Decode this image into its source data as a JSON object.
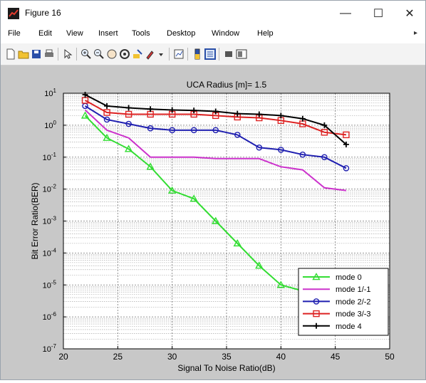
{
  "window": {
    "title": "Figure 16",
    "controls": {
      "minimize": "—",
      "maximize": "☐",
      "close": "✕"
    }
  },
  "menu": {
    "items": [
      "File",
      "Edit",
      "View",
      "Insert",
      "Tools",
      "Desktop",
      "Window",
      "Help"
    ],
    "overflow_arrow": "▸"
  },
  "toolbar": {
    "icons": [
      "new-figure-icon",
      "open-file-icon",
      "save-icon",
      "print-icon",
      "pointer-icon",
      "zoom-in-icon",
      "zoom-out-icon",
      "pan-icon",
      "rotate-3d-icon",
      "data-cursor-icon",
      "brush-icon",
      "link-plot-icon",
      "colorbar-icon",
      "legend-icon",
      "hide-plot-tools-icon",
      "show-plot-tools-icon"
    ]
  },
  "chart_data": {
    "type": "line",
    "title": "UCA Radius [m]= 1.5",
    "xlabel": "Signal To Noise Ratio(dB)",
    "ylabel": "Bit Error Ratio(BER)",
    "xlim": [
      20,
      50
    ],
    "ylim": [
      1e-07,
      10
    ],
    "yscale": "log",
    "x_ticks": [
      20,
      25,
      30,
      35,
      40,
      45,
      50
    ],
    "y_ticks": [
      {
        "value": 10,
        "base": "10",
        "exp": "1"
      },
      {
        "value": 1,
        "base": "10",
        "exp": "0"
      },
      {
        "value": 0.1,
        "base": "10",
        "exp": "-1"
      },
      {
        "value": 0.01,
        "base": "10",
        "exp": "-2"
      },
      {
        "value": 0.001,
        "base": "10",
        "exp": "-3"
      },
      {
        "value": 0.0001,
        "base": "10",
        "exp": "-4"
      },
      {
        "value": 1e-05,
        "base": "10",
        "exp": "-5"
      },
      {
        "value": 1e-06,
        "base": "10",
        "exp": "-6"
      },
      {
        "value": 1e-07,
        "base": "10",
        "exp": "-7"
      }
    ],
    "grid": true,
    "legend_position": "bottom-right",
    "x": [
      22,
      24,
      26,
      28,
      30,
      32,
      34,
      36,
      38,
      40,
      42,
      44,
      46
    ],
    "series": [
      {
        "name": "mode 0",
        "color": "#33dd33",
        "marker": "triangle",
        "values": [
          2.0,
          0.4,
          0.18,
          0.05,
          0.009,
          0.005,
          0.001,
          0.0002,
          4e-05,
          1e-05,
          6.5e-06,
          4.7e-06,
          4e-07
        ]
      },
      {
        "name": "mode 1/-1",
        "color": "#cc33cc",
        "marker": "none",
        "values": [
          3.0,
          0.7,
          0.4,
          0.1,
          0.1,
          0.1,
          0.09,
          0.09,
          0.09,
          0.05,
          0.04,
          0.011,
          0.009
        ]
      },
      {
        "name": "mode 2/-2",
        "color": "#1f1fb0",
        "marker": "circle",
        "values": [
          4.0,
          1.5,
          1.1,
          0.8,
          0.7,
          0.7,
          0.7,
          0.5,
          0.2,
          0.17,
          0.12,
          0.1,
          0.045
        ]
      },
      {
        "name": "mode 3/-3",
        "color": "#dd2222",
        "marker": "square",
        "values": [
          6.0,
          2.5,
          2.2,
          2.2,
          2.2,
          2.2,
          2.0,
          1.8,
          1.7,
          1.4,
          1.1,
          0.6,
          0.5
        ]
      },
      {
        "name": "mode 4",
        "color": "#000000",
        "marker": "plus",
        "values": [
          9.0,
          4.0,
          3.5,
          3.2,
          3.0,
          2.9,
          2.7,
          2.3,
          2.2,
          2.0,
          1.6,
          1.0,
          0.25
        ]
      }
    ]
  }
}
